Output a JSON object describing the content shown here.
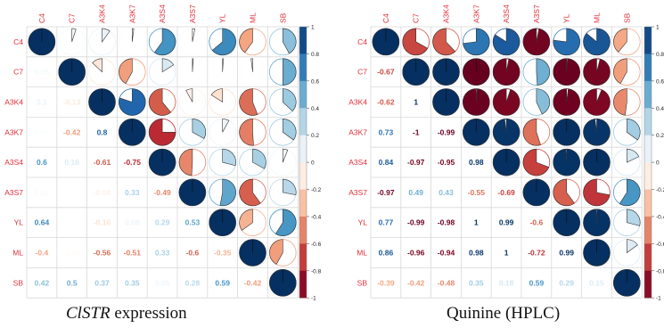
{
  "panels": [
    {
      "caption_italic": "ClSTR",
      "caption_rest": " expression"
    },
    {
      "caption_italic": "",
      "caption_rest": "Quinine (HPLC)"
    }
  ],
  "colorbar": {
    "ticks": [
      "1",
      "0.8",
      "0.6",
      "0.4",
      "0.2",
      "0",
      "-0.2",
      "-0.4",
      "-0.6",
      "-0.8",
      "-1"
    ],
    "scale": [
      "#67001F",
      "#B2182B",
      "#D6604D",
      "#F4A582",
      "#FDDBC7",
      "#FFFFFF",
      "#D1E5F0",
      "#92C5DE",
      "#4393C3",
      "#2166AC",
      "#053061"
    ]
  },
  "chart_data": [
    {
      "type": "heatmap",
      "title": "ClSTR expression",
      "labels": [
        "C4",
        "C7",
        "A3K4",
        "A3K7",
        "A3S4",
        "A3S7",
        "YL",
        "ML",
        "SB"
      ],
      "upper_glyph": "pie",
      "lower_glyph": "number",
      "matrix": [
        [
          1,
          0.05,
          0.1,
          0.02,
          0.6,
          0.03,
          0.64,
          -0.4,
          0.42
        ],
        [
          0.05,
          1,
          -0.13,
          -0.42,
          0.16,
          0.01,
          0.01,
          -0.02,
          0.5
        ],
        [
          0.1,
          -0.13,
          1,
          0.8,
          -0.61,
          -0.08,
          -0.16,
          -0.56,
          0.37
        ],
        [
          0.02,
          -0.42,
          0.8,
          1,
          -0.75,
          0.33,
          0.08,
          -0.51,
          0.35
        ],
        [
          0.6,
          0.16,
          -0.61,
          -0.75,
          1,
          -0.49,
          0.29,
          0.33,
          0.06
        ],
        [
          0.03,
          0.01,
          -0.08,
          0.33,
          -0.49,
          1,
          0.53,
          -0.6,
          0.28
        ],
        [
          0.64,
          0.01,
          -0.16,
          0.08,
          0.29,
          0.53,
          1,
          -0.35,
          0.59
        ],
        [
          -0.4,
          -0.02,
          -0.56,
          -0.51,
          0.33,
          -0.6,
          -0.35,
          1,
          -0.42
        ],
        [
          0.42,
          0.5,
          0.37,
          0.35,
          0.06,
          0.28,
          0.59,
          -0.42,
          1
        ]
      ],
      "colorbar_range": [
        -1,
        1
      ]
    },
    {
      "type": "heatmap",
      "title": "Quinine (HPLC)",
      "labels": [
        "C4",
        "C7",
        "A3K4",
        "A3K7",
        "A3S4",
        "A3S7",
        "YL",
        "ML",
        "SB"
      ],
      "upper_glyph": "pie",
      "lower_glyph": "number",
      "matrix": [
        [
          1,
          -0.67,
          -0.62,
          0.73,
          0.84,
          -0.97,
          0.77,
          0.86,
          -0.39
        ],
        [
          -0.67,
          1,
          1,
          -1,
          -0.97,
          0.49,
          -0.99,
          -0.96,
          -0.42
        ],
        [
          -0.62,
          1,
          1,
          -0.99,
          -0.95,
          0.43,
          -0.98,
          -0.94,
          -0.48
        ],
        [
          0.73,
          -1,
          -0.99,
          1,
          0.98,
          -0.55,
          1,
          0.98,
          0.35
        ],
        [
          0.84,
          -0.97,
          -0.95,
          0.98,
          1,
          -0.69,
          0.99,
          1,
          0.18
        ],
        [
          -0.97,
          0.49,
          0.43,
          -0.55,
          -0.69,
          1,
          -0.6,
          -0.72,
          0.59
        ],
        [
          0.77,
          -0.99,
          -0.98,
          1,
          0.99,
          -0.6,
          1,
          0.99,
          0.29
        ],
        [
          0.86,
          -0.96,
          -0.94,
          0.98,
          1,
          -0.72,
          0.99,
          1,
          0.15
        ],
        [
          -0.39,
          -0.42,
          -0.48,
          0.35,
          0.18,
          0.59,
          0.29,
          0.15,
          1
        ]
      ],
      "colorbar_range": [
        -1,
        1
      ]
    }
  ]
}
